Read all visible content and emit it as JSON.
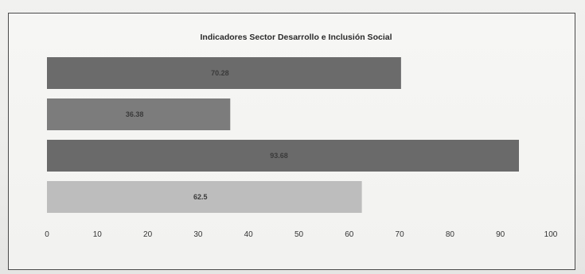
{
  "chart_data": {
    "type": "bar",
    "orientation": "horizontal",
    "title": "Indicadores Sector Desarrollo e Inclusión Social",
    "categories": [
      "",
      "",
      "",
      ""
    ],
    "values": [
      70.28,
      36.38,
      93.68,
      62.5
    ],
    "data_labels": [
      "70.28",
      "36.38",
      "93.68",
      "62.5"
    ],
    "xlim": [
      0,
      100
    ],
    "xticks": [
      0,
      10,
      20,
      30,
      40,
      50,
      60,
      70,
      80,
      90,
      100
    ],
    "xlabel": "",
    "ylabel": "",
    "grid": false,
    "legend": "none",
    "bar_colors": [
      "#6b6b6b",
      "#7c7c7c",
      "#6a6a6a",
      "#bdbdbd"
    ]
  }
}
